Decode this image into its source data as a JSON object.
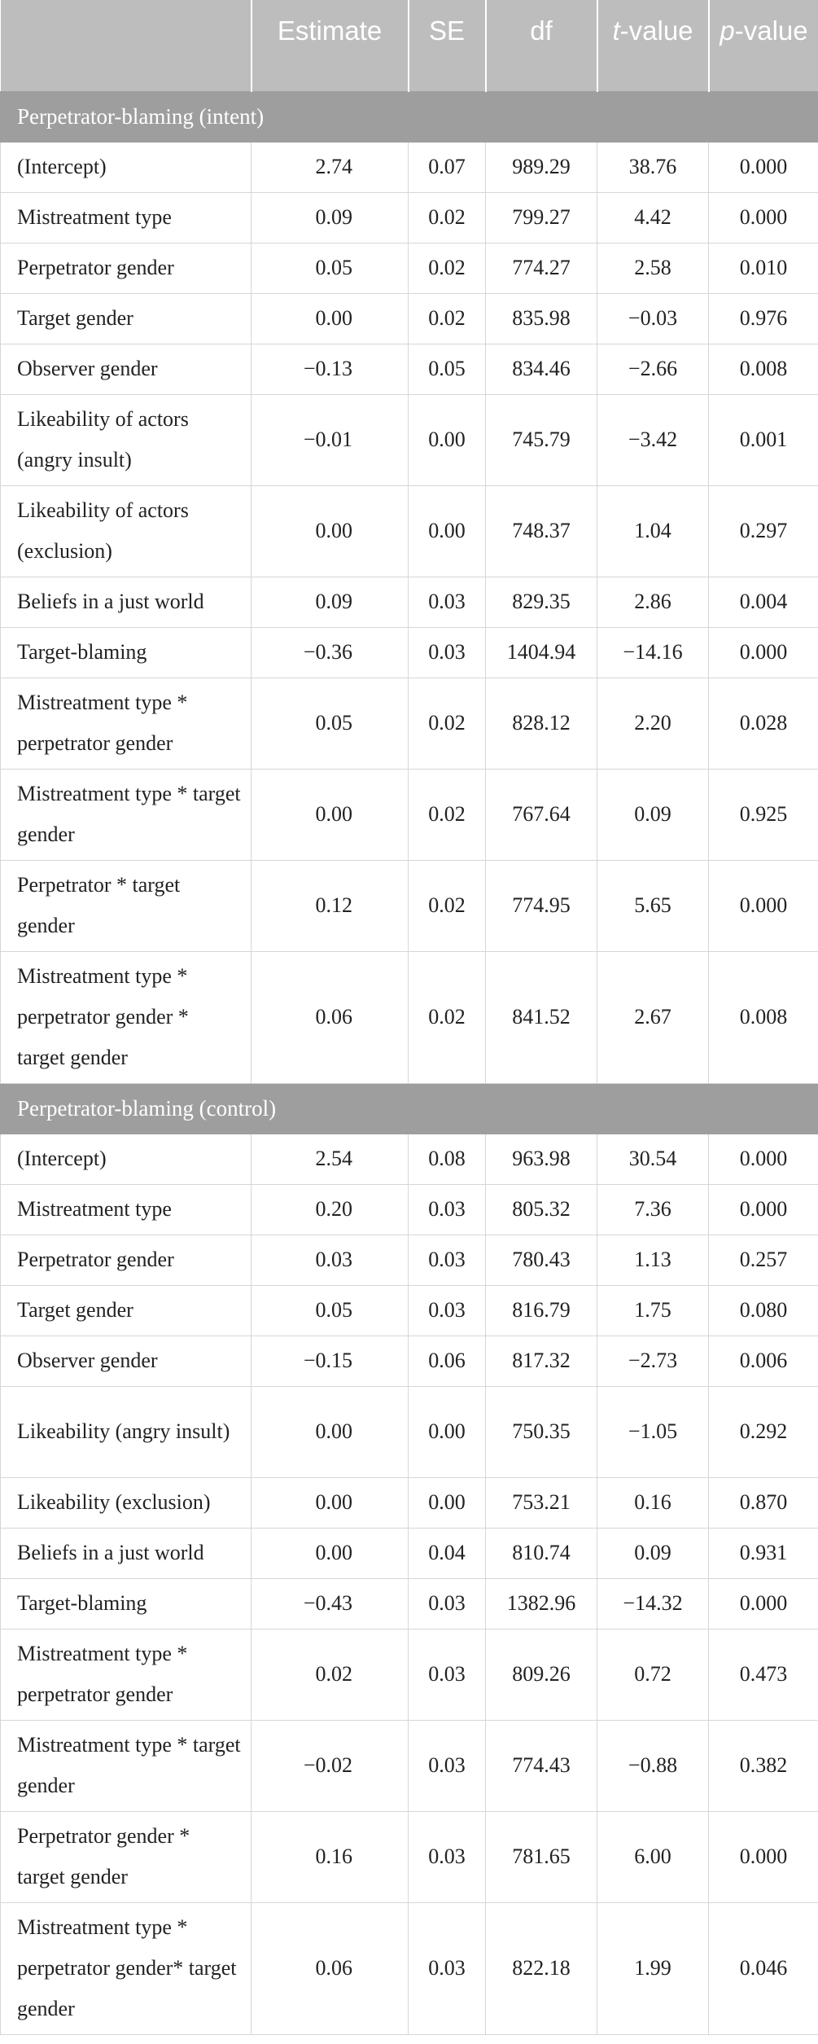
{
  "table": {
    "headers": {
      "label": "",
      "estimate": "Estimate",
      "se": "SE",
      "df": "df",
      "t_main": "t",
      "t_rest": "-value",
      "p_main": "p",
      "p_rest": "-value"
    },
    "sections": [
      {
        "title": "Perpetrator-blaming (intent)",
        "rows": [
          {
            "label": "(Intercept)",
            "estimate": "2.74",
            "se": "0.07",
            "df": "989.29",
            "t": "38.76",
            "p": "0.000"
          },
          {
            "label": "Mistreatment type",
            "estimate": "0.09",
            "se": "0.02",
            "df": "799.27",
            "t": "4.42",
            "p": "0.000"
          },
          {
            "label": "Perpetrator gender",
            "estimate": "0.05",
            "se": "0.02",
            "df": "774.27",
            "t": "2.58",
            "p": "0.010"
          },
          {
            "label": "Target gender",
            "estimate": "0.00",
            "se": "0.02",
            "df": "835.98",
            "t": "−0.03",
            "p": "0.976"
          },
          {
            "label": "Observer gender",
            "estimate": "−0.13",
            "se": "0.05",
            "df": "834.46",
            "t": "−2.66",
            "p": "0.008"
          },
          {
            "label": "Likeability of actors (angry insult)",
            "estimate": "−0.01",
            "se": "0.00",
            "df": "745.79",
            "t": "−3.42",
            "p": "0.001"
          },
          {
            "label": "Likeability of actors (exclusion)",
            "estimate": "0.00",
            "se": "0.00",
            "df": "748.37",
            "t": "1.04",
            "p": "0.297"
          },
          {
            "label": "Beliefs in a just world",
            "estimate": "0.09",
            "se": "0.03",
            "df": "829.35",
            "t": "2.86",
            "p": "0.004"
          },
          {
            "label": "Target-blaming",
            "estimate": "−0.36",
            "se": "0.03",
            "df": "1404.94",
            "t": "−14.16",
            "p": "0.000"
          },
          {
            "label": "Mistreatment type * perpetrator gender",
            "estimate": "0.05",
            "se": "0.02",
            "df": "828.12",
            "t": "2.20",
            "p": "0.028"
          },
          {
            "label": "Mistreatment type * target gender",
            "estimate": "0.00",
            "se": "0.02",
            "df": "767.64",
            "t": "0.09",
            "p": "0.925"
          },
          {
            "label": "Perpetrator * target gender",
            "estimate": "0.12",
            "se": "0.02",
            "df": "774.95",
            "t": "5.65",
            "p": "0.000"
          },
          {
            "label": "Mistreatment type * perpetrator gender * target gender",
            "estimate": "0.06",
            "se": "0.02",
            "df": "841.52",
            "t": "2.67",
            "p": "0.008"
          }
        ]
      },
      {
        "title": "Perpetrator-blaming (control)",
        "rows": [
          {
            "label": "(Intercept)",
            "estimate": "2.54",
            "se": "0.08",
            "df": "963.98",
            "t": "30.54",
            "p": "0.000"
          },
          {
            "label": "Mistreatment type",
            "estimate": "0.20",
            "se": "0.03",
            "df": "805.32",
            "t": "7.36",
            "p": "0.000"
          },
          {
            "label": "Perpetrator gender",
            "estimate": "0.03",
            "se": "0.03",
            "df": "780.43",
            "t": "1.13",
            "p": "0.257"
          },
          {
            "label": "Target gender",
            "estimate": "0.05",
            "se": "0.03",
            "df": "816.79",
            "t": "1.75",
            "p": "0.080"
          },
          {
            "label": "Observer gender",
            "estimate": "−0.15",
            "se": "0.06",
            "df": "817.32",
            "t": "−2.73",
            "p": "0.006"
          },
          {
            "label": "Likeability (angry insult)",
            "estimate": "0.00",
            "se": "0.00",
            "df": "750.35",
            "t": "−1.05",
            "p": "0.292"
          },
          {
            "label": "Likeability (exclusion)",
            "estimate": "0.00",
            "se": "0.00",
            "df": "753.21",
            "t": "0.16",
            "p": "0.870"
          },
          {
            "label": "Beliefs in a just world",
            "estimate": "0.00",
            "se": "0.04",
            "df": "810.74",
            "t": "0.09",
            "p": "0.931"
          },
          {
            "label": "Target-blaming",
            "estimate": "−0.43",
            "se": "0.03",
            "df": "1382.96",
            "t": "−14.32",
            "p": "0.000"
          },
          {
            "label": "Mistreatment type * perpetrator gender",
            "estimate": "0.02",
            "se": "0.03",
            "df": "809.26",
            "t": "0.72",
            "p": "0.473"
          },
          {
            "label": "Mistreatment type * target gender",
            "estimate": "−0.02",
            "se": "0.03",
            "df": "774.43",
            "t": "−0.88",
            "p": "0.382"
          },
          {
            "label": "Perpetrator gender * target gender",
            "estimate": "0.16",
            "se": "0.03",
            "df": "781.65",
            "t": "6.00",
            "p": "0.000"
          },
          {
            "label": "Mistreatment type * perpetrator gender* target gender",
            "estimate": "0.06",
            "se": "0.03",
            "df": "822.18",
            "t": "1.99",
            "p": "0.046"
          }
        ]
      }
    ]
  }
}
